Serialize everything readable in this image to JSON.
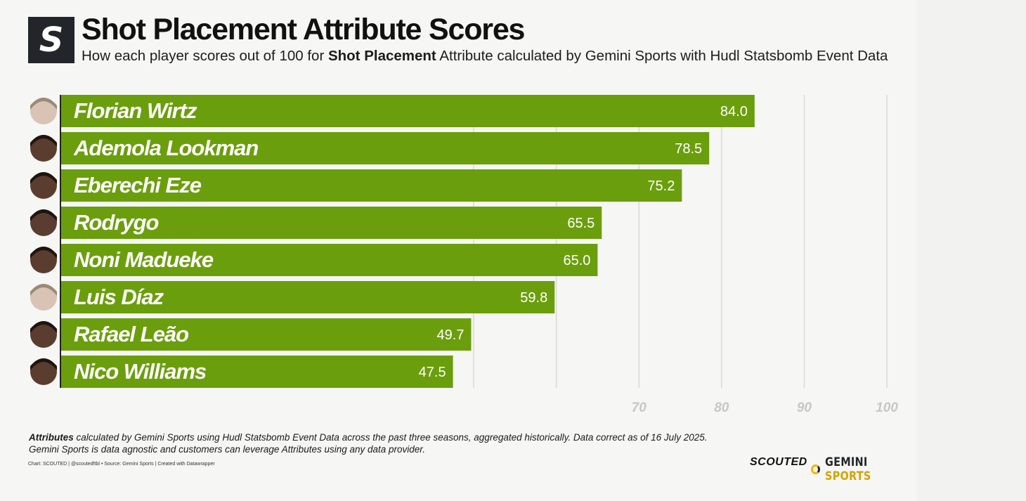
{
  "header": {
    "logo_letter": "S",
    "title": "Shot Placement Attribute Scores",
    "subtitle_pre": "How each player scores out of 100 for ",
    "subtitle_bold": "Shot Placement",
    "subtitle_post": " Attribute calculated by Gemini Sports with Hudl Statsbomb Event Data"
  },
  "chart_data": {
    "type": "bar",
    "orientation": "horizontal",
    "categories": [
      "Florian Wirtz",
      "Ademola Lookman",
      "Eberechi Eze",
      "Rodrygo",
      "Noni Madueke",
      "Luis Díaz",
      "Rafael Leão",
      "Nico Williams"
    ],
    "values": [
      84.0,
      78.5,
      75.2,
      65.5,
      65.0,
      59.8,
      49.7,
      47.5
    ],
    "value_labels": [
      "84.0",
      "78.5",
      "75.2",
      "65.5",
      "65.0",
      "59.8",
      "49.7",
      "47.5"
    ],
    "xlim": [
      0,
      100
    ],
    "gridlines": [
      50,
      60,
      70,
      80,
      90,
      100
    ],
    "tick_labels": [
      "70",
      "80",
      "90",
      "100"
    ],
    "bar_color": "#6b9e0c",
    "grid": true
  },
  "footer": {
    "note_bold": "Attributes",
    "note_line1": " calculated by Gemini Sports using Hudl Statsbomb Event Data across the past three seasons, aggregated historically. Data correct as of 16 July 2025.",
    "note_line2": "Gemini Sports is data agnostic and customers can leverage Attributes using any data provider.",
    "credits": "Chart: SCOUTED | @scoutedftbl • Source: Gemini Sports | Created with Datawrapper",
    "brand_scouted": "SCOUTED",
    "brand_gemini_a": "GEMINI ",
    "brand_gemini_b": "SPORTS"
  },
  "colors": {
    "accent": "#6b9e0c",
    "brand_yellow": "#f2b705",
    "dark": "#22262b"
  }
}
